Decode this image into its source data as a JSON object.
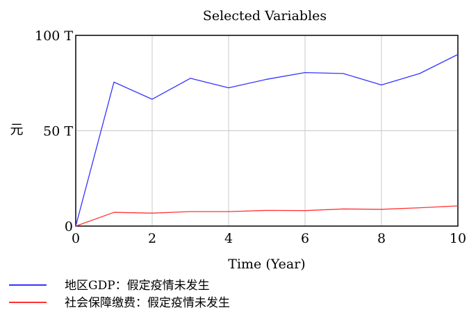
{
  "chart_data": {
    "type": "line",
    "title": "Selected Variables",
    "xlabel": "Time (Year)",
    "ylabel": "元",
    "xlim": [
      0,
      10
    ],
    "ylim": [
      0,
      100
    ],
    "x_ticks": [
      "0",
      "2",
      "4",
      "6",
      "8",
      "10"
    ],
    "y_ticks": [
      "0",
      "50 T",
      "100 T"
    ],
    "grid": true,
    "legend_position": "bottom-left",
    "x": [
      0,
      1,
      2,
      3,
      4,
      5,
      6,
      7,
      8,
      9,
      10
    ],
    "series": [
      {
        "name": "地区GDP：假定疫情未发生",
        "color": "#3333ff",
        "values": [
          0,
          75.5,
          66.5,
          77.5,
          72.5,
          77,
          80.5,
          80,
          74,
          80,
          90
        ]
      },
      {
        "name": "社会保障缴费：假定疫情未发生",
        "color": "#ff3333",
        "values": [
          0,
          7.2,
          6.8,
          7.6,
          7.6,
          8.2,
          8.1,
          9.0,
          8.8,
          9.6,
          10.6
        ]
      }
    ]
  }
}
